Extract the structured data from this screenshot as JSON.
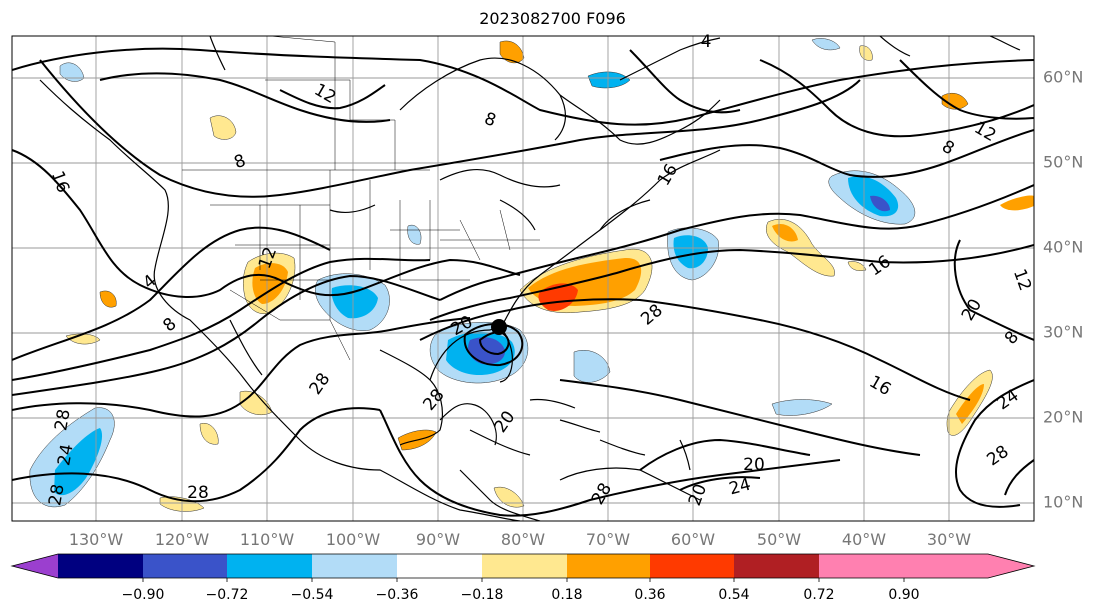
{
  "title": "2023082700 F096",
  "axes": {
    "lon_labels": [
      "130°W",
      "120°W",
      "110°W",
      "100°W",
      "90°W",
      "80°W",
      "70°W",
      "60°W",
      "50°W",
      "40°W",
      "30°W"
    ],
    "lat_labels": [
      "60°N",
      "50°N",
      "40°N",
      "30°N",
      "20°N",
      "10°N"
    ]
  },
  "colorbar": {
    "tick_labels": [
      "−0.90",
      "−0.72",
      "−0.54",
      "−0.36",
      "−0.18",
      "0.18",
      "0.36",
      "0.54",
      "0.72",
      "0.90"
    ],
    "colors": [
      "#9b3fcf",
      "#000080",
      "#3a53c9",
      "#00b2f0",
      "#b2dcf7",
      "#ffffff",
      "#ffe890",
      "#ffa000",
      "#ff3a00",
      "#b01f23",
      "#ff80b0"
    ]
  },
  "contour_labels": [
    "4",
    "8",
    "12",
    "16",
    "20",
    "24",
    "28"
  ],
  "contour_label_instances": [
    "16",
    "8",
    "4",
    "8",
    "12",
    "28",
    "24",
    "28",
    "28",
    "20",
    "20",
    "24",
    "28",
    "28",
    "8",
    "12",
    "16",
    "20",
    "12",
    "8",
    "24",
    "28",
    "16",
    "20",
    "8",
    "12",
    "16",
    "4",
    "20",
    "28",
    "28"
  ]
}
